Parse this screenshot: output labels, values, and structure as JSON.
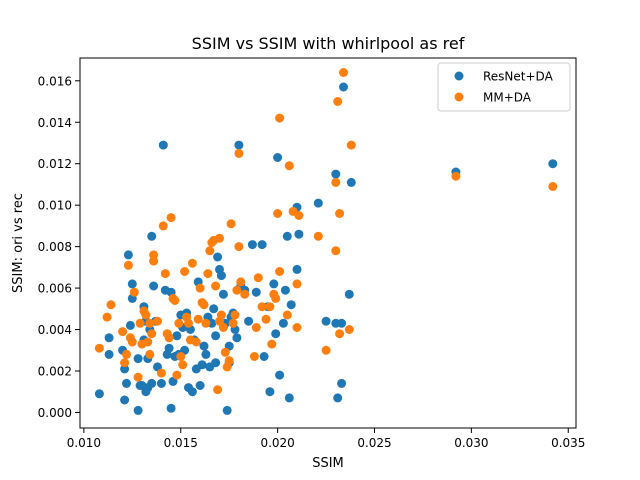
{
  "chart_data": {
    "type": "scatter",
    "title": "SSIM vs SSIM with whirlpool as ref",
    "xlabel": "SSIM",
    "ylabel": "SSIM: ori vs rec",
    "xlim": [
      0.0098,
      0.0354
    ],
    "ylim": [
      -0.00075,
      0.0171
    ],
    "xticks": [
      0.01,
      0.015,
      0.02,
      0.025,
      0.03,
      0.035
    ],
    "xtick_labels": [
      "0.010",
      "0.015",
      "0.020",
      "0.025",
      "0.030",
      "0.035"
    ],
    "yticks": [
      0.0,
      0.002,
      0.004,
      0.006,
      0.008,
      0.01,
      0.012,
      0.014,
      0.016
    ],
    "ytick_labels": [
      "0.000",
      "0.002",
      "0.004",
      "0.006",
      "0.008",
      "0.010",
      "0.012",
      "0.014",
      "0.016"
    ],
    "grid": false,
    "legend_position": "top-right",
    "series": [
      {
        "name": "ResNet+DA",
        "color": "#1f77b4",
        "points": [
          [
            0.0108,
            0.0009
          ],
          [
            0.0113,
            0.0036
          ],
          [
            0.0113,
            0.0028
          ],
          [
            0.012,
            0.003
          ],
          [
            0.0121,
            0.0006
          ],
          [
            0.0122,
            0.0014
          ],
          [
            0.0121,
            0.0021
          ],
          [
            0.0123,
            0.0076
          ],
          [
            0.0124,
            0.0042
          ],
          [
            0.0125,
            0.0062
          ],
          [
            0.0125,
            0.0055
          ],
          [
            0.0128,
            0.0001
          ],
          [
            0.0128,
            0.0026
          ],
          [
            0.0129,
            0.0013
          ],
          [
            0.013,
            0.0013
          ],
          [
            0.0131,
            0.0035
          ],
          [
            0.0131,
            0.0051
          ],
          [
            0.0132,
            0.0044
          ],
          [
            0.0132,
            0.001
          ],
          [
            0.0133,
            0.0012
          ],
          [
            0.0133,
            0.0026
          ],
          [
            0.0134,
            0.004
          ],
          [
            0.0135,
            0.0085
          ],
          [
            0.0135,
            0.0014
          ],
          [
            0.0136,
            0.0061
          ],
          [
            0.0137,
            0.0044
          ],
          [
            0.0138,
            0.0022
          ],
          [
            0.014,
            0.0014
          ],
          [
            0.0141,
            0.0129
          ],
          [
            0.0142,
            0.0059
          ],
          [
            0.0143,
            0.0028
          ],
          [
            0.0144,
            0.0031
          ],
          [
            0.0145,
            0.0002
          ],
          [
            0.0145,
            0.0058
          ],
          [
            0.0146,
            0.0015
          ],
          [
            0.0147,
            0.0027
          ],
          [
            0.0148,
            0.0037
          ],
          [
            0.0149,
            0.0028
          ],
          [
            0.015,
            0.0047
          ],
          [
            0.0151,
            0.0041
          ],
          [
            0.0152,
            0.003
          ],
          [
            0.0153,
            0.0048
          ],
          [
            0.0154,
            0.0012
          ],
          [
            0.0155,
            0.004
          ],
          [
            0.0156,
            0.001
          ],
          [
            0.0157,
            0.0035
          ],
          [
            0.0158,
            0.0021
          ],
          [
            0.0159,
            0.0063
          ],
          [
            0.016,
            0.0013
          ],
          [
            0.0161,
            0.0023
          ],
          [
            0.0162,
            0.0032
          ],
          [
            0.0163,
            0.0028
          ],
          [
            0.0164,
            0.0046
          ],
          [
            0.0165,
            0.0022
          ],
          [
            0.0166,
            0.0043
          ],
          [
            0.0167,
            0.005
          ],
          [
            0.0168,
            0.0037
          ],
          [
            0.0168,
            0.0024
          ],
          [
            0.0169,
            0.0075
          ],
          [
            0.017,
            0.0069
          ],
          [
            0.0171,
            0.0066
          ],
          [
            0.0172,
            0.0057
          ],
          [
            0.0173,
            0.0043
          ],
          [
            0.0174,
            0.0001
          ],
          [
            0.0175,
            0.0032
          ],
          [
            0.0175,
            0.0024
          ],
          [
            0.0176,
            0.0046
          ],
          [
            0.0177,
            0.0048
          ],
          [
            0.0178,
            0.004
          ],
          [
            0.0179,
            0.0036
          ],
          [
            0.018,
            0.0129
          ],
          [
            0.0181,
            0.0061
          ],
          [
            0.0183,
            0.0059
          ],
          [
            0.0185,
            0.0044
          ],
          [
            0.0187,
            0.0081
          ],
          [
            0.0189,
            0.0058
          ],
          [
            0.0192,
            0.0081
          ],
          [
            0.0193,
            0.0027
          ],
          [
            0.0195,
            0.0051
          ],
          [
            0.0196,
            0.001
          ],
          [
            0.0198,
            0.0062
          ],
          [
            0.0199,
            0.0038
          ],
          [
            0.02,
            0.0123
          ],
          [
            0.0201,
            0.0018
          ],
          [
            0.0203,
            0.0043
          ],
          [
            0.0204,
            0.0059
          ],
          [
            0.0205,
            0.0085
          ],
          [
            0.0206,
            0.0007
          ],
          [
            0.0207,
            0.0052
          ],
          [
            0.021,
            0.0099
          ],
          [
            0.021,
            0.0069
          ],
          [
            0.0211,
            0.0086
          ],
          [
            0.0221,
            0.0101
          ],
          [
            0.0225,
            0.0044
          ],
          [
            0.023,
            0.0115
          ],
          [
            0.023,
            0.0043
          ],
          [
            0.0231,
            0.0007
          ],
          [
            0.0233,
            0.0014
          ],
          [
            0.0233,
            0.0043
          ],
          [
            0.0234,
            0.0157
          ],
          [
            0.0237,
            0.0057
          ],
          [
            0.0238,
            0.0111
          ],
          [
            0.0292,
            0.0116
          ],
          [
            0.0342,
            0.012
          ]
        ]
      },
      {
        "name": "MM+DA",
        "color": "#ff7f0e",
        "points": [
          [
            0.0108,
            0.0031
          ],
          [
            0.0112,
            0.0046
          ],
          [
            0.0114,
            0.0052
          ],
          [
            0.012,
            0.0039
          ],
          [
            0.0121,
            0.0024
          ],
          [
            0.0122,
            0.0028
          ],
          [
            0.0123,
            0.0071
          ],
          [
            0.0124,
            0.0036
          ],
          [
            0.0125,
            0.0034
          ],
          [
            0.0126,
            0.0058
          ],
          [
            0.0128,
            0.0017
          ],
          [
            0.0129,
            0.0043
          ],
          [
            0.013,
            0.0033
          ],
          [
            0.0131,
            0.0049
          ],
          [
            0.0132,
            0.0047
          ],
          [
            0.0133,
            0.0034
          ],
          [
            0.0134,
            0.0043
          ],
          [
            0.0134,
            0.0028
          ],
          [
            0.0135,
            0.0038
          ],
          [
            0.0136,
            0.0076
          ],
          [
            0.0136,
            0.0073
          ],
          [
            0.0138,
            0.0044
          ],
          [
            0.014,
            0.0019
          ],
          [
            0.0141,
            0.009
          ],
          [
            0.0142,
            0.0067
          ],
          [
            0.0143,
            0.0038
          ],
          [
            0.0144,
            0.0036
          ],
          [
            0.0145,
            0.0094
          ],
          [
            0.0146,
            0.0055
          ],
          [
            0.0147,
            0.0054
          ],
          [
            0.0148,
            0.0018
          ],
          [
            0.0149,
            0.0043
          ],
          [
            0.015,
            0.0027
          ],
          [
            0.0151,
            0.0023
          ],
          [
            0.0152,
            0.0068
          ],
          [
            0.0153,
            0.0046
          ],
          [
            0.0154,
            0.0043
          ],
          [
            0.0155,
            0.0035
          ],
          [
            0.0156,
            0.0072
          ],
          [
            0.0158,
            0.0034
          ],
          [
            0.0159,
            0.0045
          ],
          [
            0.016,
            0.006
          ],
          [
            0.0161,
            0.0053
          ],
          [
            0.0162,
            0.0052
          ],
          [
            0.0163,
            0.0043
          ],
          [
            0.0164,
            0.0067
          ],
          [
            0.0165,
            0.0078
          ],
          [
            0.0166,
            0.0082
          ],
          [
            0.0167,
            0.0083
          ],
          [
            0.0168,
            0.0061
          ],
          [
            0.0169,
            0.0011
          ],
          [
            0.017,
            0.0084
          ],
          [
            0.017,
            0.0044
          ],
          [
            0.0171,
            0.0047
          ],
          [
            0.0172,
            0.0041
          ],
          [
            0.0173,
            0.0029
          ],
          [
            0.0174,
            0.0022
          ],
          [
            0.0175,
            0.0025
          ],
          [
            0.0176,
            0.0091
          ],
          [
            0.0177,
            0.0043
          ],
          [
            0.0178,
            0.0047
          ],
          [
            0.0179,
            0.0059
          ],
          [
            0.018,
            0.008
          ],
          [
            0.018,
            0.0125
          ],
          [
            0.0181,
            0.0063
          ],
          [
            0.0183,
            0.0057
          ],
          [
            0.0188,
            0.0027
          ],
          [
            0.0189,
            0.0041
          ],
          [
            0.019,
            0.0065
          ],
          [
            0.0192,
            0.0051
          ],
          [
            0.0194,
            0.0045
          ],
          [
            0.0196,
            0.0051
          ],
          [
            0.0197,
            0.0033
          ],
          [
            0.0198,
            0.0057
          ],
          [
            0.0199,
            0.0055
          ],
          [
            0.02,
            0.0096
          ],
          [
            0.0201,
            0.0068
          ],
          [
            0.0201,
            0.0142
          ],
          [
            0.0205,
            0.0047
          ],
          [
            0.0206,
            0.0119
          ],
          [
            0.0208,
            0.0097
          ],
          [
            0.021,
            0.0041
          ],
          [
            0.021,
            0.0062
          ],
          [
            0.0211,
            0.0095
          ],
          [
            0.0221,
            0.0085
          ],
          [
            0.0225,
            0.003
          ],
          [
            0.023,
            0.0078
          ],
          [
            0.023,
            0.0111
          ],
          [
            0.0231,
            0.015
          ],
          [
            0.0232,
            0.0096
          ],
          [
            0.0232,
            0.0038
          ],
          [
            0.0234,
            0.0164
          ],
          [
            0.0237,
            0.004
          ],
          [
            0.0238,
            0.0129
          ],
          [
            0.0292,
            0.0114
          ],
          [
            0.0342,
            0.0109
          ]
        ]
      }
    ]
  }
}
